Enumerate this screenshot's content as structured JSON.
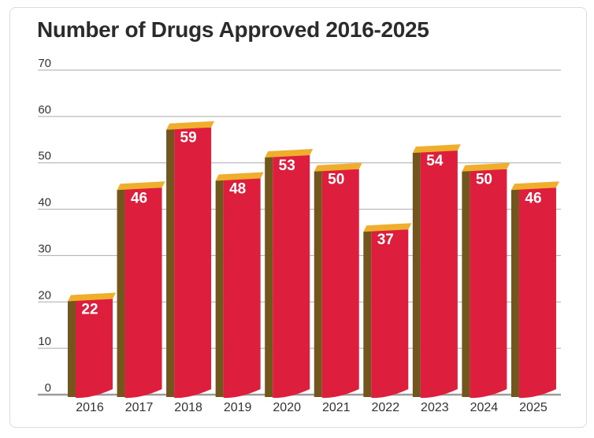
{
  "chart_data": {
    "type": "bar",
    "title": "Number of Drugs Approved 2016-2025",
    "categories": [
      "2016",
      "2017",
      "2018",
      "2019",
      "2020",
      "2021",
      "2022",
      "2023",
      "2024",
      "2025"
    ],
    "values": [
      22,
      46,
      59,
      48,
      53,
      50,
      37,
      54,
      50,
      46
    ],
    "xlabel": "",
    "ylabel": "",
    "ylim": [
      0,
      70
    ],
    "yticks": [
      0,
      10,
      20,
      30,
      40,
      50,
      60,
      70
    ],
    "grid": true,
    "legend": false,
    "bar_value_labels": true,
    "style": "pseudo-3d-extruded-bars",
    "colors": {
      "bar_front": "#DD1E3D",
      "bar_top": "#EFAF2C",
      "bar_side": "#73561E",
      "grid_line": "#ABABAB",
      "baseline": "#9B9B9B",
      "axis_text": "#333333",
      "value_text": "#FFFFFF",
      "title_text": "#2B2B2B",
      "card_border": "#DCDCDC"
    }
  }
}
